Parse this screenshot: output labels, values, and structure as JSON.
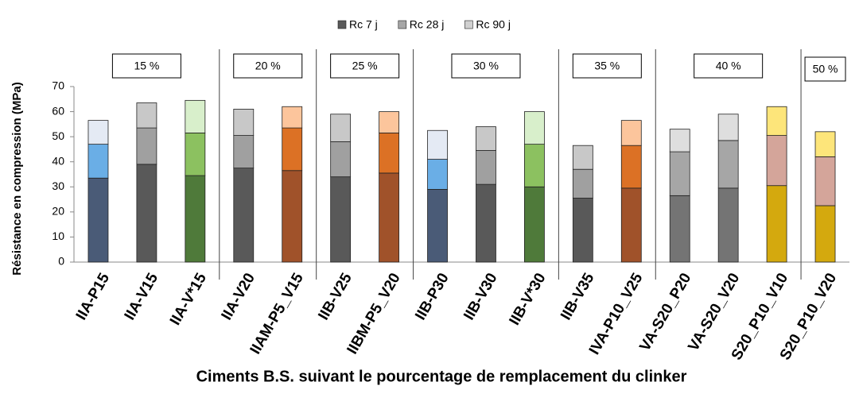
{
  "chart_data": {
    "type": "stacked_bar",
    "x_label": "Ciments B.S. suivant le pourcentage de remplacement du clinker",
    "y_label": "Résistance en compression (MPa)",
    "categories": [
      "IIA-P15",
      "IIA-V15",
      "IIA-V*15",
      "IIA-V20",
      "IIAM-P5_V15",
      "IIB-V25",
      "IIBM-P5_V20",
      "IIB-P30",
      "IIB-V30",
      "IIB-V*30",
      "IIB-V35",
      "IVA-P10_V25",
      "VA-S20_P20",
      "VA-S20_V20",
      "S20_P10_V10",
      "S20_P10_V20"
    ],
    "groups": [
      {
        "label": "15 %",
        "count": 3
      },
      {
        "label": "20 %",
        "count": 2
      },
      {
        "label": "25 %",
        "count": 2
      },
      {
        "label": "30 %",
        "count": 3
      },
      {
        "label": "35 %",
        "count": 2
      },
      {
        "label": "40 %",
        "count": 3
      },
      {
        "label": "50 %",
        "count": 1
      }
    ],
    "series": [
      {
        "name": "Rc 7 j",
        "color": "#595959",
        "values": [
          33.5,
          39,
          34.5,
          37.5,
          36.5,
          34,
          35.5,
          29,
          31,
          30,
          25.5,
          29.5,
          26.5,
          29.5,
          30.5,
          22.5
        ],
        "point_colors": [
          "#4a5b77",
          "#595959",
          "#4f7a3a",
          "#595959",
          "#a0522a",
          "#595959",
          "#a0522a",
          "#4a5b77",
          "#595959",
          "#4f7a3a",
          "#595959",
          "#a0522a",
          "#747474",
          "#747474",
          "#d4a90e",
          "#d4a90e"
        ]
      },
      {
        "name": "Rc 28 j",
        "color": "#a6a6a6",
        "values": [
          13.5,
          14.5,
          17,
          13,
          17,
          14,
          16,
          12,
          13.5,
          17,
          11.5,
          17,
          17.5,
          19,
          20,
          19.5
        ],
        "point_colors": [
          "#6aaee6",
          "#a0a0a0",
          "#8cc160",
          "#a0a0a0",
          "#dc7125",
          "#a0a0a0",
          "#dc7125",
          "#6aaee6",
          "#a0a0a0",
          "#8cc160",
          "#a0a0a0",
          "#dc7125",
          "#a6a6a6",
          "#a6a6a6",
          "#d4a59a",
          "#d4a59a"
        ]
      },
      {
        "name": "Rc 90 j",
        "color": "#d0d0d0",
        "values": [
          9.5,
          10,
          13,
          10.5,
          8.5,
          11,
          8.5,
          11.5,
          9.5,
          13,
          9.5,
          10,
          9,
          10.5,
          11.5,
          10
        ],
        "point_colors": [
          "#e4eaf4",
          "#c8c8c8",
          "#d8efcb",
          "#c8c8c8",
          "#fcc59c",
          "#c8c8c8",
          "#fcc59c",
          "#e4eaf4",
          "#c8c8c8",
          "#d8efcb",
          "#c8c8c8",
          "#fcc59c",
          "#dedede",
          "#dedede",
          "#fde57a",
          "#fde57a"
        ]
      }
    ],
    "ylim": [
      0,
      70
    ],
    "yticks": [
      0,
      10,
      20,
      30,
      40,
      50,
      60,
      70
    ]
  }
}
